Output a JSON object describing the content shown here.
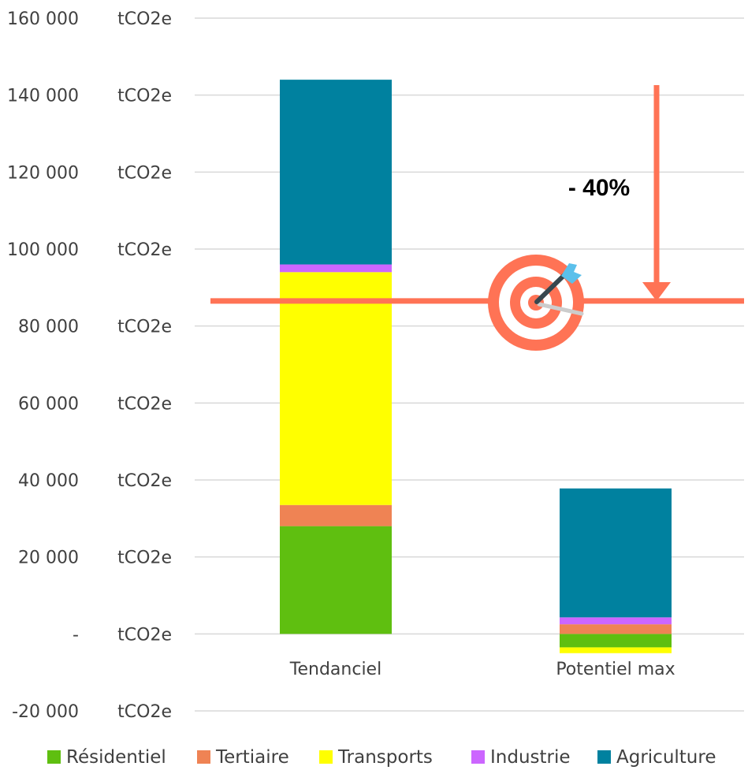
{
  "chart_data": {
    "type": "bar",
    "stacked": true,
    "categories": [
      "Tendanciel",
      "Potentiel max"
    ],
    "series": [
      {
        "name": "Résidentiel",
        "color": "#5FBF10",
        "values": [
          28000,
          -3500
        ]
      },
      {
        "name": "Tertiaire",
        "color": "#EF8354",
        "values": [
          5500,
          2500
        ]
      },
      {
        "name": "Transports",
        "color": "#FFFF00",
        "values": [
          60500,
          -1500
        ]
      },
      {
        "name": "Industrie",
        "color": "#CC66FF",
        "values": [
          2000,
          1800
        ]
      },
      {
        "name": "Agriculture",
        "color": "#00819F",
        "values": [
          48000,
          33500
        ]
      }
    ],
    "y_ticks": [
      {
        "value": 160000,
        "label": "160 000",
        "unit": "tCO2e"
      },
      {
        "value": 140000,
        "label": "140 000",
        "unit": "tCO2e"
      },
      {
        "value": 120000,
        "label": "120 000",
        "unit": "tCO2e"
      },
      {
        "value": 100000,
        "label": "100 000",
        "unit": "tCO2e"
      },
      {
        "value": 80000,
        "label": "80 000",
        "unit": "tCO2e"
      },
      {
        "value": 60000,
        "label": "60 000",
        "unit": "tCO2e"
      },
      {
        "value": 40000,
        "label": "40 000",
        "unit": "tCO2e"
      },
      {
        "value": 20000,
        "label": "20 000",
        "unit": "tCO2e"
      },
      {
        "value": 0,
        "label": "-",
        "unit": "tCO2e"
      },
      {
        "value": -20000,
        "label": "-20 000",
        "unit": "tCO2e"
      }
    ],
    "ylim": [
      -20000,
      160000
    ],
    "grid": true,
    "legend_position": "bottom",
    "target_line_value": 86500,
    "target_line_color": "#FF7355",
    "annotation": {
      "text": "- 40%",
      "color": "#FF7355"
    },
    "title": "",
    "xlabel": "",
    "ylabel": ""
  }
}
